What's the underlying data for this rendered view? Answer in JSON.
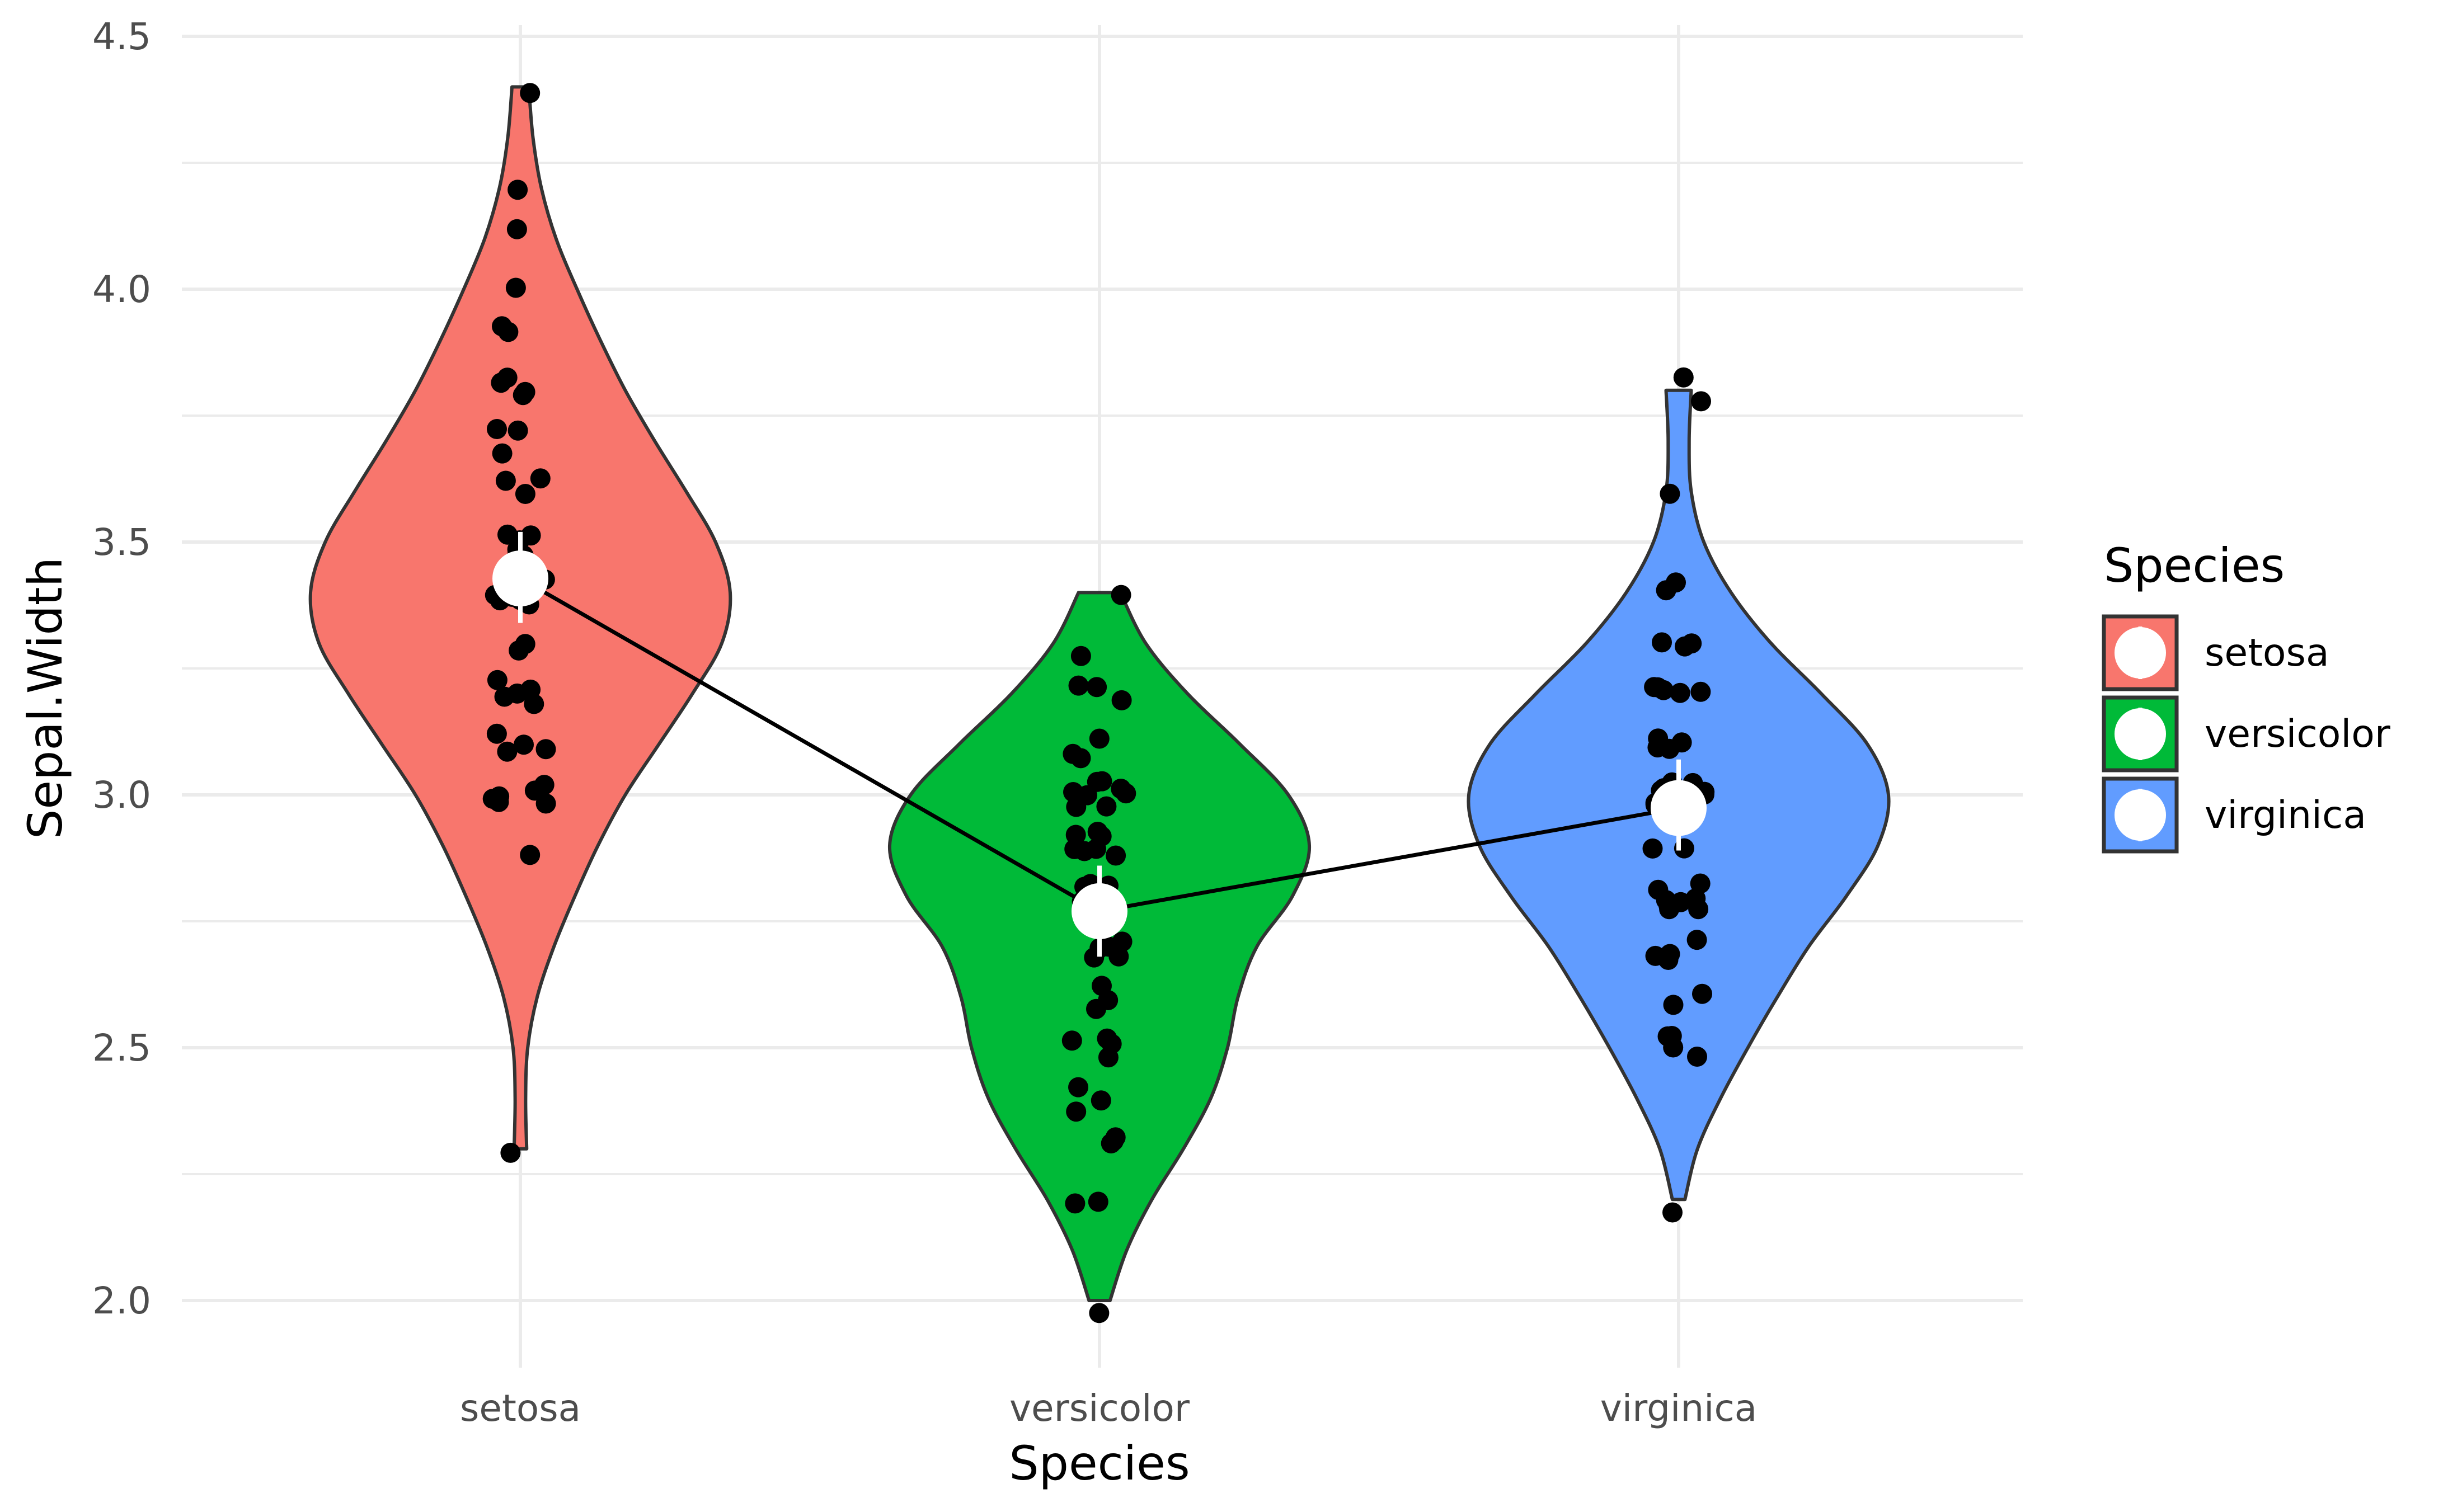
{
  "chart_data": {
    "type": "violin",
    "title": "",
    "xlabel": "Species",
    "ylabel": "Sepal.Width",
    "ylim": [
      1.87,
      4.52
    ],
    "yticks": [
      "2.0",
      "2.5",
      "3.0",
      "3.5",
      "4.0",
      "4.5"
    ],
    "categories": [
      "setosa",
      "versicolor",
      "virginica"
    ],
    "grid": true,
    "legend": {
      "title": "Species",
      "position": "right",
      "entries": [
        "setosa",
        "versicolor",
        "virginica"
      ]
    },
    "colors": {
      "setosa": "#F8766D",
      "versicolor": "#00BA38",
      "virginica": "#619CFF",
      "outline": "#333333",
      "points": "#000000",
      "mean_marker": "#ffffff",
      "mean_line": "#000000",
      "grid": "#ebebeb"
    },
    "groups": [
      {
        "name": "setosa",
        "min": 2.3,
        "max": 4.4,
        "mean": 3.428,
        "ci": [
          3.34,
          3.52
        ],
        "density": [
          [
            2.3,
            0.03
          ],
          [
            2.4,
            0.025
          ],
          [
            2.5,
            0.035
          ],
          [
            2.6,
            0.08
          ],
          [
            2.7,
            0.16
          ],
          [
            2.8,
            0.26
          ],
          [
            2.9,
            0.37
          ],
          [
            3.0,
            0.5
          ],
          [
            3.1,
            0.66
          ],
          [
            3.2,
            0.82
          ],
          [
            3.3,
            0.96
          ],
          [
            3.4,
            1.0
          ],
          [
            3.5,
            0.93
          ],
          [
            3.6,
            0.79
          ],
          [
            3.7,
            0.64
          ],
          [
            3.8,
            0.5
          ],
          [
            3.9,
            0.38
          ],
          [
            4.0,
            0.27
          ],
          [
            4.1,
            0.17
          ],
          [
            4.2,
            0.1
          ],
          [
            4.3,
            0.06
          ],
          [
            4.4,
            0.04
          ]
        ],
        "points": [
          3.5,
          3.0,
          3.2,
          3.1,
          3.6,
          3.9,
          3.4,
          3.4,
          2.9,
          3.1,
          3.7,
          3.4,
          3.0,
          3.0,
          4.0,
          4.4,
          3.9,
          3.5,
          3.8,
          3.8,
          3.4,
          3.7,
          3.6,
          3.3,
          3.4,
          3.0,
          3.4,
          3.5,
          3.4,
          3.2,
          3.1,
          3.4,
          4.1,
          4.2,
          3.1,
          3.2,
          3.5,
          3.6,
          3.0,
          3.4,
          3.5,
          2.3,
          3.2,
          3.5,
          3.8,
          3.0,
          3.8,
          3.2,
          3.7,
          3.3
        ]
      },
      {
        "name": "versicolor",
        "min": 2.0,
        "max": 3.4,
        "mean": 2.77,
        "ci": [
          2.68,
          2.86
        ],
        "density": [
          [
            2.0,
            0.05
          ],
          [
            2.1,
            0.13
          ],
          [
            2.2,
            0.25
          ],
          [
            2.3,
            0.4
          ],
          [
            2.4,
            0.53
          ],
          [
            2.5,
            0.61
          ],
          [
            2.6,
            0.66
          ],
          [
            2.7,
            0.75
          ],
          [
            2.8,
            0.92
          ],
          [
            2.9,
            1.0
          ],
          [
            3.0,
            0.9
          ],
          [
            3.1,
            0.67
          ],
          [
            3.2,
            0.42
          ],
          [
            3.3,
            0.22
          ],
          [
            3.4,
            0.1
          ]
        ],
        "points": [
          3.2,
          3.2,
          3.1,
          2.3,
          2.8,
          2.8,
          3.3,
          2.4,
          2.9,
          2.7,
          2.0,
          3.0,
          2.2,
          2.9,
          2.9,
          3.1,
          3.0,
          2.7,
          2.2,
          2.5,
          3.2,
          2.8,
          2.5,
          2.8,
          2.9,
          3.0,
          2.8,
          3.0,
          2.9,
          2.6,
          2.4,
          2.4,
          2.7,
          2.7,
          3.0,
          3.4,
          3.1,
          2.3,
          3.0,
          2.5,
          2.6,
          3.0,
          2.6,
          2.3,
          2.7,
          3.0,
          2.9,
          2.9,
          2.5,
          2.8
        ]
      },
      {
        "name": "virginica",
        "min": 2.2,
        "max": 3.8,
        "mean": 2.974,
        "ci": [
          2.89,
          3.07
        ],
        "density": [
          [
            2.2,
            0.03
          ],
          [
            2.3,
            0.09
          ],
          [
            2.4,
            0.2
          ],
          [
            2.5,
            0.33
          ],
          [
            2.6,
            0.47
          ],
          [
            2.7,
            0.62
          ],
          [
            2.8,
            0.8
          ],
          [
            2.9,
            0.95
          ],
          [
            3.0,
            1.0
          ],
          [
            3.1,
            0.9
          ],
          [
            3.2,
            0.68
          ],
          [
            3.3,
            0.44
          ],
          [
            3.4,
            0.25
          ],
          [
            3.5,
            0.12
          ],
          [
            3.6,
            0.06
          ],
          [
            3.7,
            0.05
          ],
          [
            3.8,
            0.06
          ]
        ],
        "points": [
          3.3,
          2.7,
          3.0,
          2.9,
          3.0,
          3.0,
          2.5,
          2.9,
          2.5,
          3.6,
          3.2,
          2.7,
          3.0,
          2.5,
          2.8,
          3.2,
          3.0,
          3.8,
          2.6,
          2.2,
          3.2,
          2.8,
          2.8,
          2.7,
          3.3,
          3.2,
          2.8,
          3.0,
          2.8,
          3.0,
          2.8,
          3.8,
          2.8,
          2.8,
          2.6,
          3.0,
          3.4,
          3.1,
          3.0,
          3.1,
          3.1,
          3.1,
          2.7,
          3.2,
          3.3,
          3.0,
          2.5,
          3.0,
          3.4,
          3.0
        ]
      }
    ]
  }
}
